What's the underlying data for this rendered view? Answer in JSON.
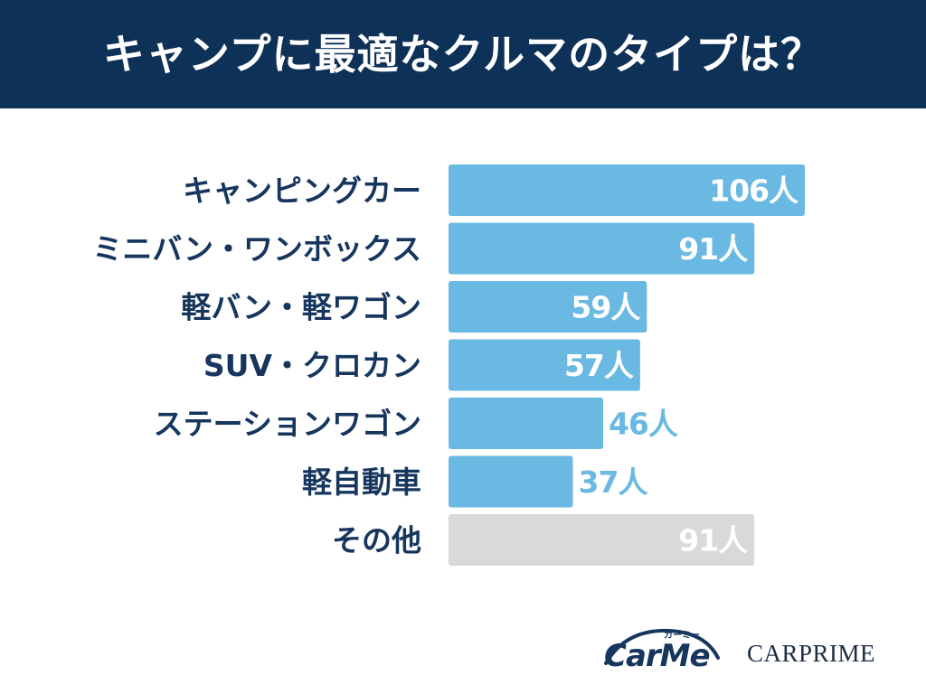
{
  "header": {
    "title": "キャンプに最適なクルマのタイプは？"
  },
  "colors": {
    "header_bg": "#0e3158",
    "bar": "#6ab9e2",
    "bar_other": "#d9d9d9",
    "label": "#16365e"
  },
  "chart_data": {
    "type": "bar",
    "orientation": "horizontal",
    "title": "キャンプに最適なクルマのタイプは？",
    "categories": [
      "キャンピングカー",
      "ミニバン・ワンボックス",
      "軽バン・軽ワゴン",
      "SUV・クロカン",
      "ステーションワゴン",
      "軽自動車",
      "その他"
    ],
    "values": [
      106,
      91,
      59,
      57,
      46,
      37,
      91
    ],
    "value_labels": [
      "106人",
      "91人",
      "59人",
      "57人",
      "46人",
      "37人",
      "91人"
    ],
    "unit": "人",
    "highlight_gray": [
      "その他"
    ]
  },
  "logos": {
    "carme": "CarMe",
    "carme_sub": "カーミー",
    "carprime": "CARPRIME"
  }
}
